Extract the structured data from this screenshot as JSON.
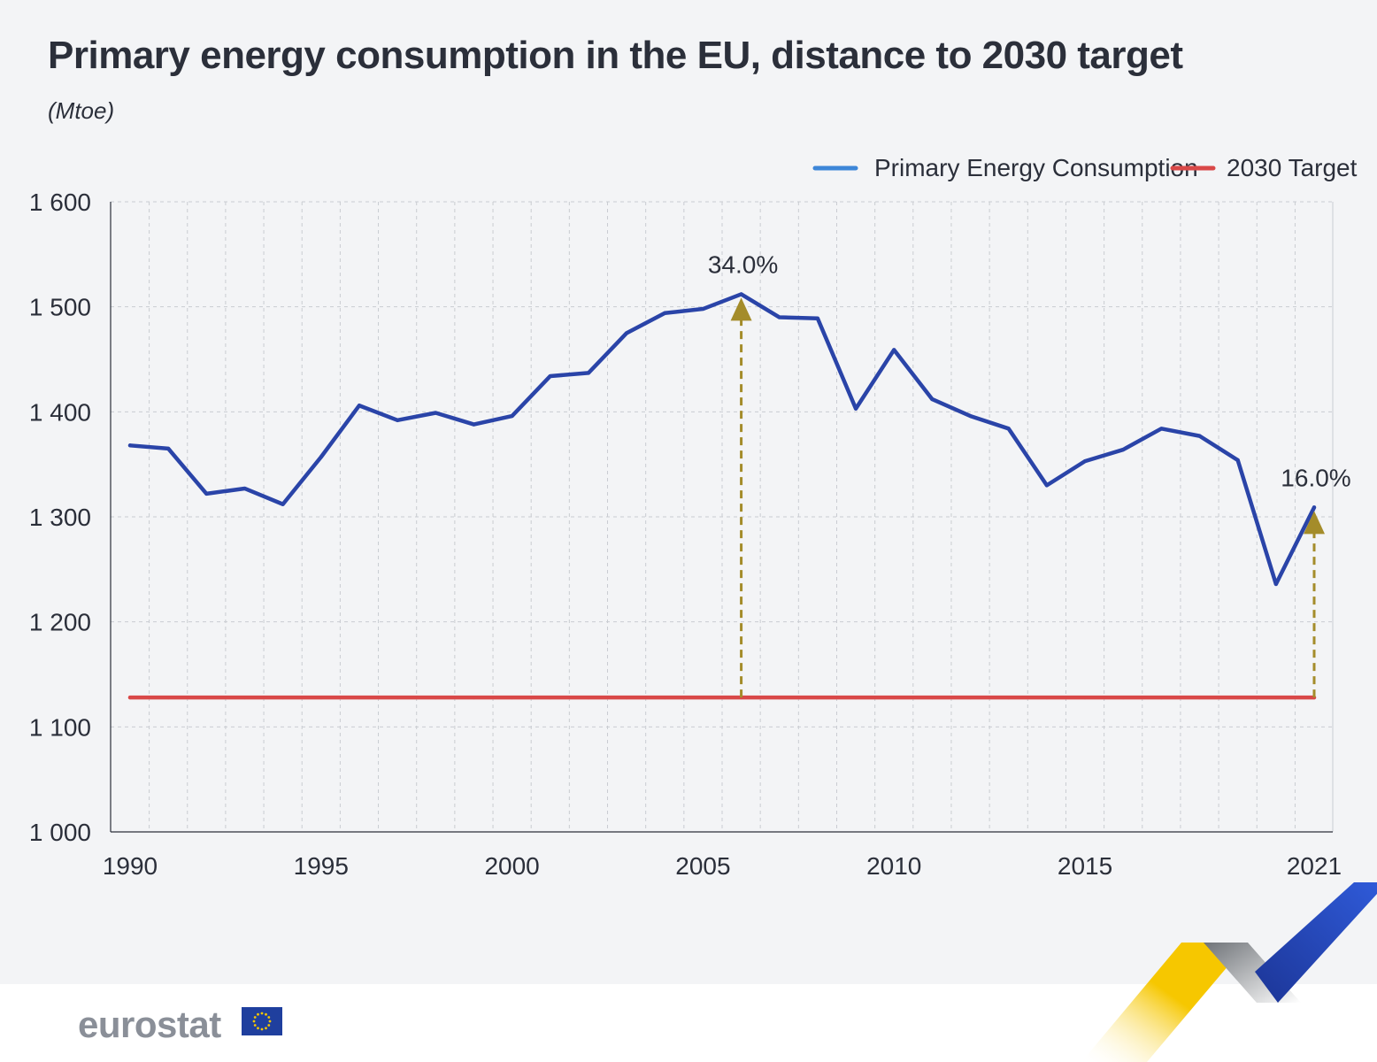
{
  "title": "Primary energy consumption in the EU, distance to 2030 target",
  "subtitle": "(Mtoe)",
  "brand": "eurostat",
  "chart_data": {
    "type": "line",
    "title": "Primary energy consumption in the EU, distance to 2030 target",
    "unit": "(Mtoe)",
    "x": [
      1990,
      1991,
      1992,
      1993,
      1994,
      1995,
      1996,
      1997,
      1998,
      1999,
      2000,
      2001,
      2002,
      2003,
      2004,
      2005,
      2006,
      2007,
      2008,
      2009,
      2010,
      2011,
      2012,
      2013,
      2014,
      2015,
      2016,
      2017,
      2018,
      2019,
      2020,
      2021
    ],
    "x_tick_labels": [
      "1990",
      "1995",
      "2000",
      "2005",
      "2010",
      "2015",
      "2021"
    ],
    "x_tick_values": [
      1990,
      1995,
      2000,
      2005,
      2010,
      2015,
      2021
    ],
    "y_tick_labels": [
      "1 000",
      "1 100",
      "1 200",
      "1 300",
      "1 400",
      "1 500",
      "1 600"
    ],
    "y_tick_values": [
      1000,
      1100,
      1200,
      1300,
      1400,
      1500,
      1600
    ],
    "ylim": [
      1000,
      1600
    ],
    "series": [
      {
        "name": "Primary Energy Consumption",
        "color": "#2a44a8",
        "legend_color": "#3d86d8",
        "values": [
          1368,
          1365,
          1322,
          1327,
          1312,
          1357,
          1406,
          1392,
          1399,
          1388,
          1396,
          1434,
          1437,
          1475,
          1494,
          1498,
          1512,
          1490,
          1489,
          1403,
          1459,
          1412,
          1396,
          1384,
          1330,
          1353,
          1364,
          1384,
          1377,
          1354,
          1236,
          1309
        ]
      },
      {
        "name": "2030 Target",
        "color": "#d94848",
        "values": [
          1128,
          1128,
          1128,
          1128,
          1128,
          1128,
          1128,
          1128,
          1128,
          1128,
          1128,
          1128,
          1128,
          1128,
          1128,
          1128,
          1128,
          1128,
          1128,
          1128,
          1128,
          1128,
          1128,
          1128,
          1128,
          1128,
          1128,
          1128,
          1128,
          1128,
          1128,
          1128
        ]
      }
    ],
    "annotations": [
      {
        "x": 2006,
        "from": 1128,
        "to": 1512,
        "label": "34.0%",
        "color": "#a48c2a"
      },
      {
        "x": 2021,
        "from": 1128,
        "to": 1309,
        "label": "16.0%",
        "color": "#a48c2a"
      }
    ],
    "grid": true,
    "legend_position": "top-right"
  }
}
